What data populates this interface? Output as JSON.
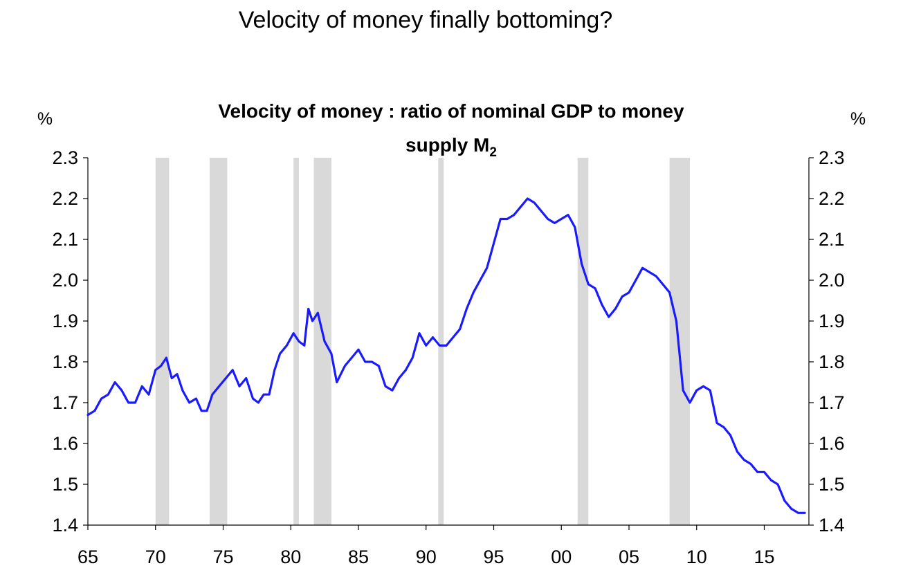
{
  "page": {
    "title": "Velocity of money finally bottoming?"
  },
  "chart_data": {
    "type": "line",
    "title_line1": "Velocity of money : ratio of nominal GDP to money",
    "title_line2_text": "supply M",
    "title_line2_sub": "2",
    "ylabel_left": "%",
    "ylabel_right": "%",
    "xlim": [
      1965,
      2018.3
    ],
    "ylim": [
      1.4,
      2.3
    ],
    "x_ticks": [
      1965,
      1970,
      1975,
      1980,
      1985,
      1990,
      1995,
      2000,
      2005,
      2010,
      2015
    ],
    "x_tick_labels": [
      "65",
      "70",
      "75",
      "80",
      "85",
      "90",
      "95",
      "00",
      "05",
      "10",
      "15"
    ],
    "y_ticks": [
      1.4,
      1.5,
      1.6,
      1.7,
      1.8,
      1.9,
      2.0,
      2.1,
      2.2,
      2.3
    ],
    "y_tick_labels": [
      "1.4",
      "1.5",
      "1.6",
      "1.7",
      "1.8",
      "1.9",
      "2.0",
      "2.1",
      "2.2",
      "2.3"
    ],
    "line_color": "#1a1aff",
    "shade_color": "#d9d9d9",
    "recessions": [
      [
        1970.0,
        1971.0
      ],
      [
        1974.0,
        1975.3
      ],
      [
        1980.2,
        1980.6
      ],
      [
        1981.7,
        1983.0
      ],
      [
        1990.9,
        1991.3
      ],
      [
        2001.2,
        2002.0
      ],
      [
        2008.0,
        2009.5
      ]
    ],
    "series": [
      {
        "name": "Velocity of money (GDP / M2)",
        "x": [
          1965.0,
          1965.5,
          1966.0,
          1966.5,
          1967.0,
          1967.5,
          1968.0,
          1968.5,
          1969.0,
          1969.5,
          1970.0,
          1970.4,
          1970.8,
          1971.2,
          1971.6,
          1972.0,
          1972.5,
          1973.0,
          1973.4,
          1973.8,
          1974.2,
          1974.7,
          1975.2,
          1975.7,
          1976.2,
          1976.7,
          1977.2,
          1977.6,
          1978.0,
          1978.4,
          1978.8,
          1979.2,
          1979.7,
          1980.2,
          1980.6,
          1981.0,
          1981.3,
          1981.6,
          1982.0,
          1982.5,
          1983.0,
          1983.4,
          1984.0,
          1984.5,
          1985.0,
          1985.5,
          1986.0,
          1986.5,
          1987.0,
          1987.5,
          1988.0,
          1988.5,
          1989.0,
          1989.5,
          1990.0,
          1990.5,
          1991.0,
          1991.5,
          1992.0,
          1992.5,
          1993.0,
          1993.5,
          1994.0,
          1994.5,
          1995.0,
          1995.5,
          1996.0,
          1996.5,
          1997.0,
          1997.5,
          1998.0,
          1998.5,
          1999.0,
          1999.5,
          2000.0,
          2000.5,
          2001.0,
          2001.5,
          2002.0,
          2002.5,
          2003.0,
          2003.5,
          2004.0,
          2004.5,
          2005.0,
          2005.5,
          2006.0,
          2006.5,
          2007.0,
          2007.5,
          2008.0,
          2008.5,
          2009.0,
          2009.5,
          2010.0,
          2010.5,
          2011.0,
          2011.5,
          2012.0,
          2012.5,
          2013.0,
          2013.5,
          2014.0,
          2014.5,
          2015.0,
          2015.5,
          2016.0,
          2016.5,
          2017.0,
          2017.5,
          2018.0
        ],
        "y": [
          1.67,
          1.68,
          1.71,
          1.72,
          1.75,
          1.73,
          1.7,
          1.7,
          1.74,
          1.72,
          1.78,
          1.79,
          1.81,
          1.76,
          1.77,
          1.73,
          1.7,
          1.71,
          1.68,
          1.68,
          1.72,
          1.74,
          1.76,
          1.78,
          1.74,
          1.76,
          1.71,
          1.7,
          1.72,
          1.72,
          1.78,
          1.82,
          1.84,
          1.87,
          1.85,
          1.84,
          1.93,
          1.9,
          1.92,
          1.85,
          1.82,
          1.75,
          1.79,
          1.81,
          1.83,
          1.8,
          1.8,
          1.79,
          1.74,
          1.73,
          1.76,
          1.78,
          1.81,
          1.87,
          1.84,
          1.86,
          1.84,
          1.84,
          1.86,
          1.88,
          1.93,
          1.97,
          2.0,
          2.03,
          2.09,
          2.15,
          2.15,
          2.16,
          2.18,
          2.2,
          2.19,
          2.17,
          2.15,
          2.14,
          2.15,
          2.16,
          2.13,
          2.04,
          1.99,
          1.98,
          1.94,
          1.91,
          1.93,
          1.96,
          1.97,
          2.0,
          2.03,
          2.02,
          2.01,
          1.99,
          1.97,
          1.9,
          1.73,
          1.7,
          1.73,
          1.74,
          1.73,
          1.65,
          1.64,
          1.62,
          1.58,
          1.56,
          1.55,
          1.53,
          1.53,
          1.51,
          1.5,
          1.46,
          1.44,
          1.43,
          1.43
        ]
      }
    ]
  }
}
